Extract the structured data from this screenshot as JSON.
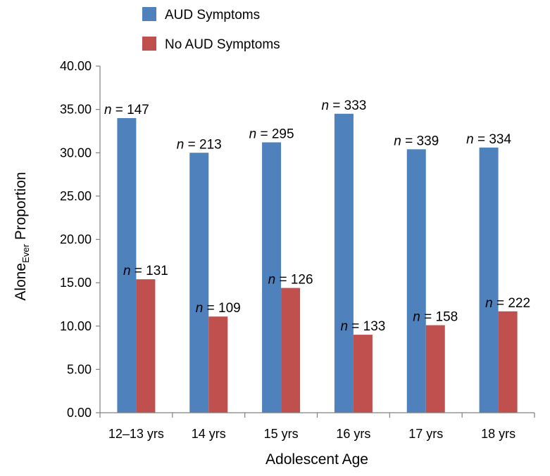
{
  "chart_data": {
    "type": "bar",
    "title": "",
    "xlabel": "Adolescent Age",
    "ylabel": {
      "main": "Alone",
      "subscript": "Ever",
      "rest": " Proportion"
    },
    "ylim": [
      0,
      40
    ],
    "yticks": [
      "0.00",
      "5.00",
      "10.00",
      "15.00",
      "20.00",
      "25.00",
      "30.00",
      "35.00",
      "40.00"
    ],
    "grid": false,
    "legend_position": "top-left",
    "categories": [
      "12–13 yrs",
      "14 yrs",
      "15 yrs",
      "16 yrs",
      "17 yrs",
      "18 yrs"
    ],
    "series": [
      {
        "name": "AUD Symptoms",
        "color": "#4f81bd",
        "values": [
          34.0,
          30.0,
          31.2,
          34.5,
          30.4,
          30.6
        ],
        "n_labels": [
          "147",
          "213",
          "295",
          "333",
          "339",
          "334"
        ]
      },
      {
        "name": "No AUD Symptoms",
        "color": "#c0504d",
        "values": [
          15.4,
          11.1,
          14.4,
          9.0,
          10.1,
          11.7
        ],
        "n_labels": [
          "131",
          "109",
          "126",
          "133",
          "158",
          "222"
        ]
      }
    ],
    "n_prefix": "n",
    "n_equals": " = "
  }
}
